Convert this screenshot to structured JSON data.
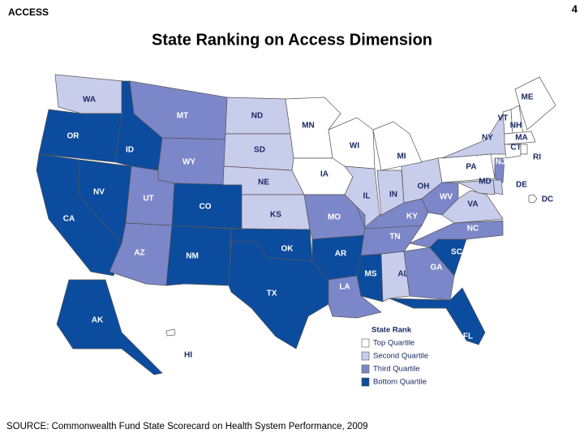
{
  "header": {
    "section": "ACCESS",
    "page": "4"
  },
  "title": "State Ranking on Access Dimension",
  "legend": {
    "title": "State Rank",
    "items": [
      {
        "label": "Top Quartile",
        "color": "#ffffff"
      },
      {
        "label": "Second Quartile",
        "color": "#c9cdec"
      },
      {
        "label": "Third Quartile",
        "color": "#7c87c9"
      },
      {
        "label": "Bottom Quartile",
        "color": "#0b4c9e"
      }
    ]
  },
  "map": {
    "states": [
      {
        "label": "WA",
        "quartile": 1
      },
      {
        "label": "OR",
        "quartile": 3
      },
      {
        "label": "CA",
        "quartile": 3
      },
      {
        "label": "NV",
        "quartile": 3
      },
      {
        "label": "ID",
        "quartile": 3
      },
      {
        "label": "MT",
        "quartile": 2
      },
      {
        "label": "WY",
        "quartile": 2
      },
      {
        "label": "UT",
        "quartile": 2
      },
      {
        "label": "CO",
        "quartile": 3
      },
      {
        "label": "AZ",
        "quartile": 2
      },
      {
        "label": "NM",
        "quartile": 3
      },
      {
        "label": "ND",
        "quartile": 1
      },
      {
        "label": "SD",
        "quartile": 1
      },
      {
        "label": "NE",
        "quartile": 1
      },
      {
        "label": "KS",
        "quartile": 1
      },
      {
        "label": "OK",
        "quartile": 3
      },
      {
        "label": "TX",
        "quartile": 3
      },
      {
        "label": "MN",
        "quartile": 0
      },
      {
        "label": "IA",
        "quartile": 0
      },
      {
        "label": "MO",
        "quartile": 2
      },
      {
        "label": "AR",
        "quartile": 3
      },
      {
        "label": "LA",
        "quartile": 2
      },
      {
        "label": "MS",
        "quartile": 3
      },
      {
        "label": "AL",
        "quartile": 1
      },
      {
        "label": "GA",
        "quartile": 2
      },
      {
        "label": "FL",
        "quartile": 3
      },
      {
        "label": "SC",
        "quartile": 3
      },
      {
        "label": "NC",
        "quartile": 2
      },
      {
        "label": "TN",
        "quartile": 2
      },
      {
        "label": "KY",
        "quartile": 2
      },
      {
        "label": "IL",
        "quartile": 1
      },
      {
        "label": "IN",
        "quartile": 1
      },
      {
        "label": "OH",
        "quartile": 1
      },
      {
        "label": "WV",
        "quartile": 2
      },
      {
        "label": "VA",
        "quartile": 1
      },
      {
        "label": "PA",
        "quartile": 0
      },
      {
        "label": "NY",
        "quartile": 1
      },
      {
        "label": "MI",
        "quartile": 0
      },
      {
        "label": "WI",
        "quartile": 0
      },
      {
        "label": "VT",
        "quartile": 0
      },
      {
        "label": "NH",
        "quartile": 0
      },
      {
        "label": "ME",
        "quartile": 0
      },
      {
        "label": "MA",
        "quartile": 0
      },
      {
        "label": "CT",
        "quartile": 0
      },
      {
        "label": "RI",
        "quartile": 0
      },
      {
        "label": "NJ",
        "quartile": 2
      },
      {
        "label": "DE",
        "quartile": 1
      },
      {
        "label": "MD",
        "quartile": 1
      },
      {
        "label": "DC",
        "quartile": 0
      },
      {
        "label": "AK",
        "quartile": 3
      },
      {
        "label": "HI",
        "quartile": 0
      }
    ]
  },
  "source": "SOURCE: Commonwealth Fund State Scorecard on Health System Performance, 2009"
}
